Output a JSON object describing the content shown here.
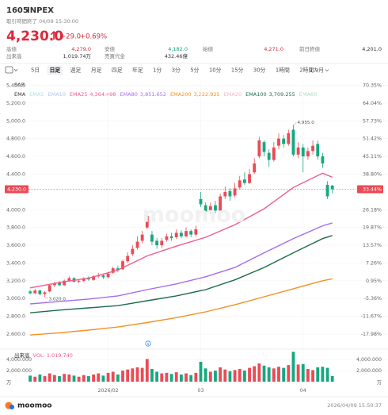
{
  "header": {
    "symbol": "1605",
    "name": "INPEX",
    "status": "取引時間終了 04/09 15:30:00",
    "price": "4,230.0",
    "change": "+29.0",
    "change_pct": "+0.69%",
    "stats": [
      {
        "label": "高値",
        "value": "4,279.0",
        "color": "#e0263a"
      },
      {
        "label": "安値",
        "value": "4,182.0",
        "color": "#12a57c"
      },
      {
        "label": "始値",
        "value": "4,271.0",
        "color": "#e0263a"
      },
      {
        "label": "前日終値",
        "value": "4,201.0",
        "color": "#333333"
      },
      {
        "label": "出来高",
        "value": "1,019.74万",
        "color": "#333333"
      },
      {
        "label": "売買代金",
        "value": "432.46億",
        "color": "#333333"
      }
    ]
  },
  "tabs": [
    "5日",
    "日足",
    "週足",
    "月足",
    "四足",
    "年足",
    "1分",
    "3分",
    "5分",
    "10分",
    "15分",
    "30分",
    "1時間",
    "2時間",
    "1カ月"
  ],
  "selected_tab": "日足",
  "sar_label": "SAR",
  "indicator": "EMA",
  "watermark": "moomoo",
  "chart_data": [
    {
      "type": "candlestick",
      "up_color": "#ec4a55",
      "down_color": "#16a881",
      "xlim": [
        -0.5,
        64
      ],
      "ylim": [
        2520,
        5440
      ],
      "y2lim": [
        -20.52,
        71.62
      ],
      "yticks": [
        {
          "value": 5400,
          "label": "5,400.0"
        },
        {
          "value": 5200,
          "label": "5,200.0"
        },
        {
          "value": 5000,
          "label": "5,000.0"
        },
        {
          "value": 4800,
          "label": "4,800.0"
        },
        {
          "value": 4600,
          "label": "4,600.0"
        },
        {
          "value": 4400,
          "label": "4,400.0"
        },
        {
          "value": 4000,
          "label": "4,000.0"
        },
        {
          "value": 3800,
          "label": "3,800.0"
        },
        {
          "value": 3600,
          "label": "3,600.0"
        },
        {
          "value": 3400,
          "label": "3,400.0"
        },
        {
          "value": 3200,
          "label": "3,200.0"
        },
        {
          "value": 3000,
          "label": "3,000.0"
        },
        {
          "value": 2800,
          "label": "2,800.0"
        },
        {
          "value": 2600,
          "label": "2,600.0"
        }
      ],
      "y2ticks": [
        {
          "value": 70.35,
          "label": "70.35%"
        },
        {
          "value": 64.04,
          "label": "64.04%"
        },
        {
          "value": 57.73,
          "label": "57.73%"
        },
        {
          "value": 51.42,
          "label": "51.42%"
        },
        {
          "value": 45.11,
          "label": "45.11%"
        },
        {
          "value": 38.8,
          "label": "38.80%"
        },
        {
          "value": 26.18,
          "label": "26.18%"
        },
        {
          "value": 19.87,
          "label": "19.87%"
        },
        {
          "value": 13.57,
          "label": "13.57%"
        },
        {
          "value": 7.26,
          "label": "7.26%"
        },
        {
          "value": 0.95,
          "label": "0.95%"
        },
        {
          "value": -5.36,
          "label": "-5.36%"
        },
        {
          "value": -11.67,
          "label": "-11.67%"
        },
        {
          "value": -17.98,
          "label": "-17.98%"
        }
      ],
      "current": {
        "value": 4230,
        "label": "4,230.0",
        "percent": 33.44,
        "percent_label": "33.44%",
        "color": "#ec4a55"
      },
      "annotations": [
        {
          "kind": "high",
          "value": 4955,
          "label": "4,955.0"
        },
        {
          "kind": "low",
          "value": 3020,
          "label": "3,020.0"
        }
      ],
      "open": [
        3080,
        3060,
        3090,
        3050,
        3080,
        3150,
        3180,
        3150,
        3200,
        3230,
        3190,
        3200,
        3230,
        3210,
        3250,
        3260,
        3240,
        3290,
        3340,
        3330,
        3420,
        3500,
        3570,
        3650,
        3800,
        3720,
        3650,
        3600,
        3660,
        3700,
        3690,
        3740,
        3700,
        3760,
        3720,
        4120,
        4050,
        3980,
        4050,
        3990,
        4150,
        4210,
        4160,
        4250,
        4340,
        4300,
        4420,
        4600,
        4760,
        4640,
        4560,
        4720,
        4800,
        4740,
        4900,
        4620,
        4700,
        4600,
        4660,
        4740,
        4600,
        4280,
        4271
      ],
      "high": [
        3100,
        3110,
        3100,
        3085,
        3165,
        3190,
        3200,
        3215,
        3250,
        3240,
        3215,
        3240,
        3250,
        3265,
        3290,
        3280,
        3300,
        3360,
        3370,
        3440,
        3520,
        3600,
        3700,
        3760,
        3980,
        3760,
        3680,
        3680,
        3730,
        3740,
        3780,
        3770,
        3800,
        3780,
        3820,
        4200,
        4080,
        4080,
        4100,
        4180,
        4260,
        4240,
        4300,
        4380,
        4420,
        4460,
        4580,
        4820,
        4780,
        4680,
        4760,
        4860,
        4840,
        4900,
        4955,
        4760,
        4740,
        4700,
        4780,
        4780,
        4640,
        4320,
        4279
      ],
      "low": [
        3045,
        3050,
        3035,
        3020,
        3070,
        3130,
        3140,
        3140,
        3190,
        3180,
        3170,
        3185,
        3200,
        3200,
        3230,
        3220,
        3230,
        3280,
        3300,
        3320,
        3400,
        3480,
        3550,
        3620,
        3780,
        3600,
        3560,
        3570,
        3640,
        3650,
        3670,
        3680,
        3690,
        3690,
        3700,
        4030,
        3950,
        3950,
        3960,
        3980,
        4120,
        4100,
        4140,
        4230,
        4280,
        4290,
        4400,
        4580,
        4600,
        4480,
        4540,
        4680,
        4700,
        4720,
        4600,
        4580,
        4420,
        4560,
        4620,
        4560,
        4470,
        4120,
        4182
      ],
      "close": [
        3060,
        3090,
        3050,
        3070,
        3150,
        3170,
        3150,
        3200,
        3230,
        3190,
        3200,
        3230,
        3215,
        3250,
        3260,
        3240,
        3280,
        3340,
        3320,
        3420,
        3480,
        3560,
        3640,
        3720,
        3930,
        3640,
        3600,
        3650,
        3700,
        3680,
        3740,
        3700,
        3760,
        3720,
        3780,
        4060,
        3980,
        4040,
        3990,
        4150,
        4200,
        4150,
        4240,
        4330,
        4300,
        4400,
        4520,
        4780,
        4650,
        4560,
        4700,
        4800,
        4740,
        4860,
        4620,
        4700,
        4600,
        4660,
        4720,
        4600,
        4520,
        4150,
        4230
      ],
      "series": [
        {
          "name": "EMA5",
          "color": "#a8dfe9"
        },
        {
          "name": "EMA10",
          "color": "#a9c6ee"
        },
        {
          "name": "EMA25",
          "color": "#ee5d8c",
          "current_label": "4,364.498",
          "x": [
            0,
            6,
            12,
            18,
            24,
            30,
            36,
            42,
            48,
            54,
            60,
            62
          ],
          "values": [
            3120,
            3180,
            3230,
            3320,
            3480,
            3590,
            3690,
            3830,
            4010,
            4250,
            4410,
            4364.498
          ]
        },
        {
          "name": "EMA80",
          "color": "#a66bf0",
          "current_label": "3,851.652",
          "x": [
            0,
            6,
            12,
            18,
            24,
            30,
            36,
            42,
            48,
            54,
            60,
            62
          ],
          "values": [
            2940,
            2967,
            2994,
            3030,
            3100,
            3165,
            3245,
            3350,
            3515,
            3675,
            3818,
            3851.652
          ]
        },
        {
          "name": "EMA200",
          "color": "#f39122",
          "current_label": "3,222.925",
          "x": [
            0,
            6,
            12,
            18,
            24,
            30,
            36,
            42,
            48,
            54,
            60,
            62
          ],
          "values": [
            2590,
            2615,
            2645,
            2680,
            2730,
            2785,
            2850,
            2930,
            3020,
            3110,
            3200,
            3222.925
          ]
        },
        {
          "name": "EMA20",
          "color": "#f3b4c6"
        },
        {
          "name": "EMA100",
          "color": "#1d6b4b",
          "current_label": "3,709.255",
          "x": [
            0,
            6,
            12,
            18,
            24,
            30,
            36,
            42,
            48,
            54,
            60,
            62
          ],
          "values": [
            2840,
            2870,
            2895,
            2920,
            2975,
            3030,
            3100,
            3210,
            3350,
            3515,
            3675,
            3709.255
          ]
        },
        {
          "name": "EMA60",
          "color": "#a9dcc0"
        }
      ]
    },
    {
      "type": "bar",
      "title": "出来高",
      "legend_label": "VOL: 1,019.740",
      "unit": "万",
      "ylim": [
        0,
        5600
      ],
      "yticks": [
        {
          "value": 4000,
          "label": "4,000.000"
        },
        {
          "value": 2000,
          "label": "2,000.000"
        }
      ],
      "xticks": [
        {
          "value": 16,
          "label": "2026/02"
        },
        {
          "value": 35,
          "label": "03"
        },
        {
          "value": 56,
          "label": "04"
        }
      ],
      "values": [
        1100,
        900,
        1300,
        1000,
        1500,
        1200,
        1000,
        1400,
        1300,
        1100,
        900,
        1200,
        1000,
        1300,
        1500,
        1100,
        1600,
        1800,
        1300,
        2000,
        2200,
        2400,
        2600,
        2500,
        4100,
        2300,
        1800,
        1500,
        1600,
        1400,
        1700,
        1300,
        1500,
        1200,
        1600,
        3600,
        2400,
        1800,
        2000,
        2600,
        2200,
        1900,
        2100,
        2300,
        2000,
        2500,
        2800,
        3300,
        2900,
        2600,
        2400,
        2700,
        2500,
        3000,
        5400,
        3100,
        3200,
        2300,
        2100,
        2600,
        2700,
        2500,
        1019.74
      ]
    }
  ],
  "footer": {
    "brand": "moomoo",
    "timestamp": "2026/04/09 15:50:37"
  }
}
